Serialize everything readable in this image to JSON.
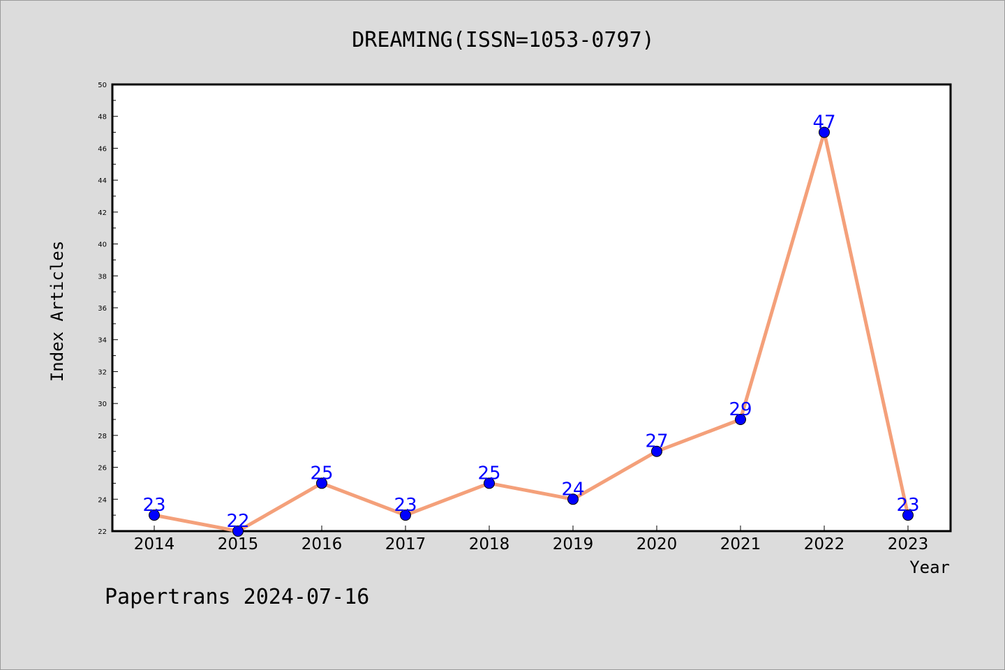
{
  "chart_data": {
    "type": "line",
    "title": "DREAMING(ISSN=1053-0797)",
    "xlabel": "Year",
    "ylabel": "Index Articles",
    "categories": [
      "2014",
      "2015",
      "2016",
      "2017",
      "2018",
      "2019",
      "2020",
      "2021",
      "2022",
      "2023"
    ],
    "series": [
      {
        "values": [
          23,
          22,
          25,
          23,
          25,
          24,
          27,
          29,
          47,
          23
        ]
      }
    ],
    "ylim": [
      22,
      50
    ],
    "yticks": [
      "22",
      "24",
      "26",
      "28",
      "30",
      "32",
      "34",
      "36",
      "38",
      "40",
      "42",
      "44",
      "46",
      "48",
      "50"
    ],
    "grid": false,
    "line_color": "#f4a07a",
    "marker_color": "#0000ff",
    "label_color": "#0000ff",
    "background": "#dcdcdc",
    "plot_background": "#ffffff"
  },
  "footer": {
    "text": "Papertrans 2024-07-16"
  }
}
